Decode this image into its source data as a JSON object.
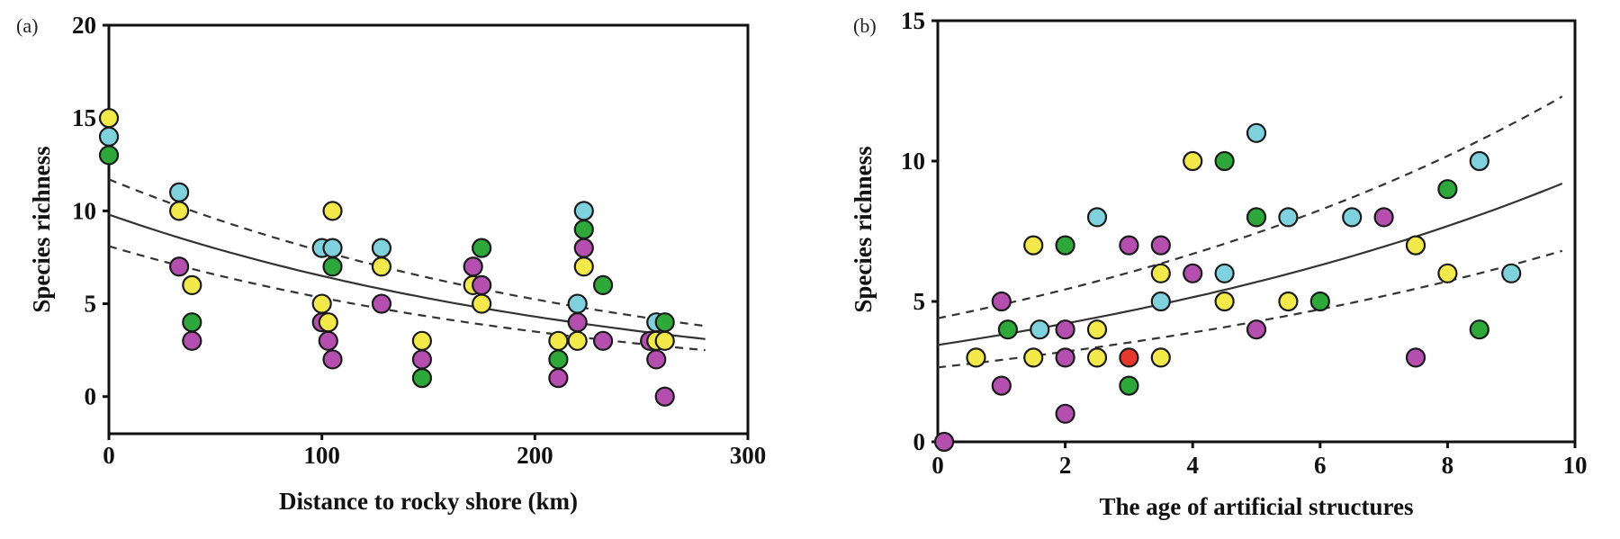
{
  "colors": {
    "yellow": "#f4e94a",
    "cyan": "#7fd2dd",
    "green": "#2ea83a",
    "purple": "#b44fb0",
    "red": "#e8382e"
  },
  "chart_data": [
    {
      "type": "scatter",
      "panel_label": "(a)",
      "xlabel": "Distance to rocky shore (km)",
      "ylabel": "Species richness",
      "xlim": [
        0,
        300
      ],
      "ylim": [
        -2,
        20
      ],
      "xticks": [
        "0",
        "100",
        "200",
        "300"
      ],
      "yticks": [
        "0",
        "5",
        "10",
        "15",
        "20"
      ],
      "grid": false,
      "points": [
        {
          "x": 0,
          "y": 15,
          "color": "yellow"
        },
        {
          "x": 0,
          "y": 14,
          "color": "cyan"
        },
        {
          "x": 0,
          "y": 13,
          "color": "green"
        },
        {
          "x": 33,
          "y": 11,
          "color": "cyan"
        },
        {
          "x": 33,
          "y": 10,
          "color": "yellow"
        },
        {
          "x": 33,
          "y": 7,
          "color": "purple"
        },
        {
          "x": 39,
          "y": 6,
          "color": "yellow"
        },
        {
          "x": 39,
          "y": 4,
          "color": "green"
        },
        {
          "x": 39,
          "y": 3,
          "color": "purple"
        },
        {
          "x": 100,
          "y": 8,
          "color": "cyan"
        },
        {
          "x": 100,
          "y": 5,
          "color": "yellow"
        },
        {
          "x": 100,
          "y": 4,
          "color": "purple"
        },
        {
          "x": 103,
          "y": 4,
          "color": "yellow"
        },
        {
          "x": 103,
          "y": 3,
          "color": "purple"
        },
        {
          "x": 105,
          "y": 10,
          "color": "yellow"
        },
        {
          "x": 105,
          "y": 8,
          "color": "cyan"
        },
        {
          "x": 105,
          "y": 7,
          "color": "green"
        },
        {
          "x": 105,
          "y": 2,
          "color": "purple"
        },
        {
          "x": 128,
          "y": 8,
          "color": "cyan"
        },
        {
          "x": 128,
          "y": 7,
          "color": "yellow"
        },
        {
          "x": 128,
          "y": 5,
          "color": "purple"
        },
        {
          "x": 147,
          "y": 3,
          "color": "yellow"
        },
        {
          "x": 147,
          "y": 2,
          "color": "purple"
        },
        {
          "x": 147,
          "y": 1,
          "color": "green"
        },
        {
          "x": 171,
          "y": 7,
          "color": "purple"
        },
        {
          "x": 171,
          "y": 6,
          "color": "yellow"
        },
        {
          "x": 175,
          "y": 8,
          "color": "green"
        },
        {
          "x": 175,
          "y": 6,
          "color": "purple"
        },
        {
          "x": 175,
          "y": 5,
          "color": "yellow"
        },
        {
          "x": 211,
          "y": 3,
          "color": "yellow"
        },
        {
          "x": 211,
          "y": 2,
          "color": "green"
        },
        {
          "x": 211,
          "y": 1,
          "color": "purple"
        },
        {
          "x": 220,
          "y": 5,
          "color": "cyan"
        },
        {
          "x": 220,
          "y": 4,
          "color": "purple"
        },
        {
          "x": 220,
          "y": 3,
          "color": "yellow"
        },
        {
          "x": 223,
          "y": 10,
          "color": "cyan"
        },
        {
          "x": 223,
          "y": 9,
          "color": "green"
        },
        {
          "x": 223,
          "y": 8,
          "color": "purple"
        },
        {
          "x": 223,
          "y": 7,
          "color": "yellow"
        },
        {
          "x": 232,
          "y": 6,
          "color": "green"
        },
        {
          "x": 232,
          "y": 3,
          "color": "purple"
        },
        {
          "x": 254,
          "y": 3,
          "color": "purple"
        },
        {
          "x": 257,
          "y": 4,
          "color": "cyan"
        },
        {
          "x": 257,
          "y": 3,
          "color": "yellow"
        },
        {
          "x": 257,
          "y": 2,
          "color": "purple"
        },
        {
          "x": 261,
          "y": 4,
          "color": "green"
        },
        {
          "x": 261,
          "y": 3,
          "color": "yellow"
        },
        {
          "x": 261,
          "y": 0,
          "color": "purple"
        }
      ],
      "fit": {
        "model": "exponential",
        "x_range": [
          0,
          280
        ],
        "mean": [
          9.8,
          3.1
        ],
        "upper": [
          11.7,
          3.8
        ],
        "lower": [
          8.1,
          2.5
        ]
      }
    },
    {
      "type": "scatter",
      "panel_label": "(b)",
      "xlabel": "The age of artificial structures",
      "ylabel": "Species richness",
      "xlim": [
        0,
        10
      ],
      "ylim": [
        0,
        15
      ],
      "xticks": [
        "0",
        "2",
        "4",
        "6",
        "8",
        "10"
      ],
      "yticks": [
        "0",
        "5",
        "10",
        "15"
      ],
      "grid": false,
      "points": [
        {
          "x": 0.1,
          "y": 0,
          "color": "purple"
        },
        {
          "x": 0.6,
          "y": 3,
          "color": "yellow"
        },
        {
          "x": 1,
          "y": 5,
          "color": "purple"
        },
        {
          "x": 1,
          "y": 2,
          "color": "purple"
        },
        {
          "x": 1.1,
          "y": 4,
          "color": "green"
        },
        {
          "x": 1.5,
          "y": 7,
          "color": "yellow"
        },
        {
          "x": 1.5,
          "y": 3,
          "color": "yellow"
        },
        {
          "x": 1.6,
          "y": 4,
          "color": "cyan"
        },
        {
          "x": 2,
          "y": 7,
          "color": "green"
        },
        {
          "x": 2,
          "y": 4,
          "color": "purple"
        },
        {
          "x": 2,
          "y": 3,
          "color": "purple"
        },
        {
          "x": 2,
          "y": 1,
          "color": "purple"
        },
        {
          "x": 2.5,
          "y": 8,
          "color": "cyan"
        },
        {
          "x": 2.5,
          "y": 4,
          "color": "yellow"
        },
        {
          "x": 2.5,
          "y": 3,
          "color": "yellow"
        },
        {
          "x": 3,
          "y": 7,
          "color": "purple"
        },
        {
          "x": 3,
          "y": 3,
          "color": "red"
        },
        {
          "x": 3,
          "y": 2,
          "color": "green"
        },
        {
          "x": 3.5,
          "y": 7,
          "color": "purple"
        },
        {
          "x": 3.5,
          "y": 6,
          "color": "yellow"
        },
        {
          "x": 3.5,
          "y": 5,
          "color": "cyan"
        },
        {
          "x": 3.5,
          "y": 3,
          "color": "yellow"
        },
        {
          "x": 4,
          "y": 10,
          "color": "yellow"
        },
        {
          "x": 4,
          "y": 6,
          "color": "purple"
        },
        {
          "x": 4.5,
          "y": 10,
          "color": "green"
        },
        {
          "x": 4.5,
          "y": 6,
          "color": "cyan"
        },
        {
          "x": 4.5,
          "y": 5,
          "color": "yellow"
        },
        {
          "x": 5,
          "y": 11,
          "color": "cyan"
        },
        {
          "x": 5,
          "y": 8,
          "color": "green"
        },
        {
          "x": 5,
          "y": 4,
          "color": "purple"
        },
        {
          "x": 5.5,
          "y": 8,
          "color": "cyan"
        },
        {
          "x": 5.5,
          "y": 5,
          "color": "yellow"
        },
        {
          "x": 6,
          "y": 5,
          "color": "green"
        },
        {
          "x": 6.5,
          "y": 8,
          "color": "cyan"
        },
        {
          "x": 7,
          "y": 8,
          "color": "purple"
        },
        {
          "x": 7.5,
          "y": 7,
          "color": "yellow"
        },
        {
          "x": 7.5,
          "y": 3,
          "color": "purple"
        },
        {
          "x": 8,
          "y": 9,
          "color": "green"
        },
        {
          "x": 8,
          "y": 6,
          "color": "yellow"
        },
        {
          "x": 8.5,
          "y": 10,
          "color": "cyan"
        },
        {
          "x": 8.5,
          "y": 4,
          "color": "green"
        },
        {
          "x": 9,
          "y": 6,
          "color": "cyan"
        }
      ],
      "fit": {
        "model": "exponential",
        "x_range": [
          0,
          9.8
        ],
        "mean": [
          3.45,
          9.2
        ],
        "upper": [
          4.4,
          12.3
        ],
        "lower": [
          2.65,
          6.8
        ]
      }
    }
  ]
}
